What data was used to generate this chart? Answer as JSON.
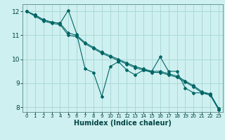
{
  "title": "",
  "xlabel": "Humidex (Indice chaleur)",
  "ylabel": "",
  "bg_color": "#cff0f0",
  "grid_color": "#aad8d8",
  "line_color": "#006666",
  "xlim": [
    -0.5,
    23.5
  ],
  "ylim": [
    7.8,
    12.3
  ],
  "yticks": [
    8,
    9,
    10,
    11,
    12
  ],
  "xticks": [
    0,
    1,
    2,
    3,
    4,
    5,
    6,
    7,
    8,
    9,
    10,
    11,
    12,
    13,
    14,
    15,
    16,
    17,
    18,
    19,
    20,
    21,
    22,
    23
  ],
  "series": [
    [
      12.0,
      11.85,
      11.65,
      11.55,
      11.5,
      12.05,
      11.05,
      9.6,
      9.45,
      8.45,
      9.7,
      9.9,
      9.55,
      9.35,
      9.55,
      9.5,
      10.1,
      9.5,
      9.5,
      8.8,
      8.6,
      8.6,
      8.55,
      7.95
    ],
    [
      12.0,
      11.85,
      11.65,
      11.55,
      11.5,
      11.1,
      11.0,
      10.7,
      10.5,
      10.3,
      10.15,
      10.0,
      9.85,
      9.7,
      9.6,
      9.5,
      9.5,
      9.4,
      9.3,
      9.1,
      8.9,
      8.65,
      8.55,
      7.95
    ],
    [
      12.0,
      11.8,
      11.6,
      11.5,
      11.45,
      11.0,
      10.95,
      10.65,
      10.45,
      10.25,
      10.1,
      9.95,
      9.8,
      9.65,
      9.55,
      9.45,
      9.45,
      9.35,
      9.25,
      9.05,
      8.85,
      8.6,
      8.5,
      7.9
    ]
  ]
}
